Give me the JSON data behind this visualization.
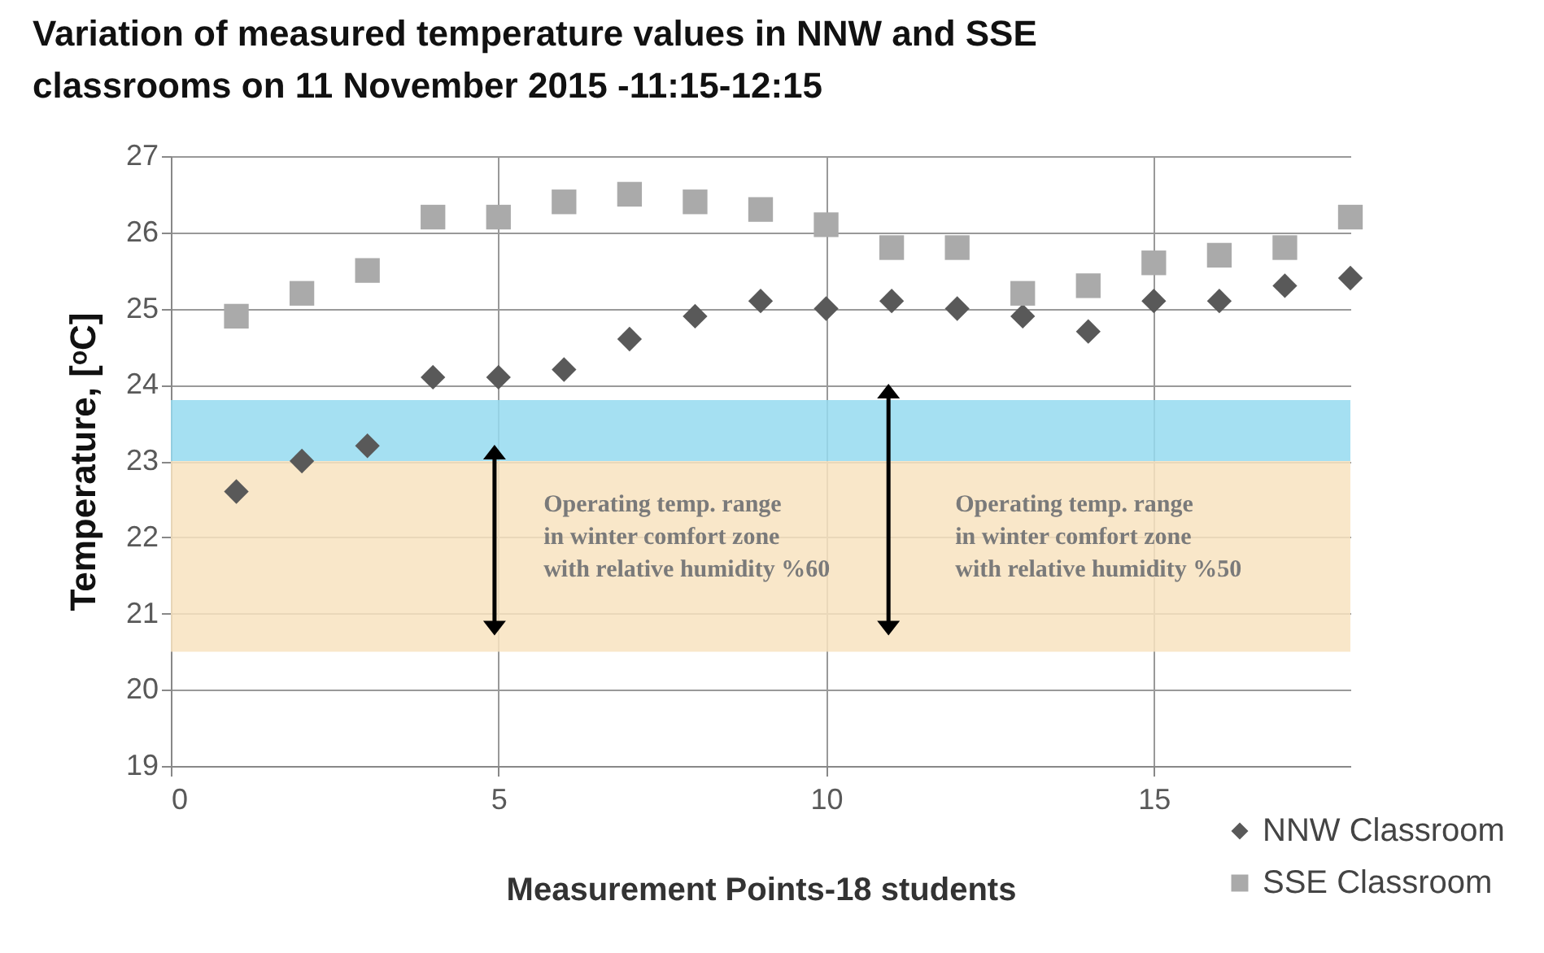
{
  "chart_data": {
    "type": "scatter",
    "title": "Variation of measured temperature values in NNW and SSE classrooms on 11 November 2015 -11:15-12:15",
    "xlabel": "Measurement Points-18 students",
    "ylabel": "Temperature, [ᵒC]",
    "x": [
      1,
      2,
      3,
      4,
      5,
      6,
      7,
      8,
      9,
      10,
      11,
      12,
      13,
      14,
      15,
      16,
      17,
      18
    ],
    "series": [
      {
        "name": "NNW Classroom",
        "color": "#595959",
        "marker": "diamond",
        "values": [
          22.6,
          23.0,
          23.2,
          24.1,
          24.1,
          24.2,
          24.6,
          24.9,
          25.1,
          25.0,
          25.1,
          25.0,
          24.9,
          24.7,
          25.1,
          25.1,
          25.3,
          25.4
        ]
      },
      {
        "name": "SSE  Classroom",
        "color": "#aaaaaa",
        "marker": "square",
        "values": [
          24.9,
          25.2,
          25.5,
          26.2,
          26.2,
          26.4,
          26.5,
          26.4,
          26.3,
          26.1,
          25.8,
          25.8,
          25.2,
          25.3,
          25.6,
          25.7,
          25.8,
          26.2
        ]
      }
    ],
    "bands": [
      {
        "axis": "y",
        "from": 20.5,
        "to": 23,
        "color": "#f8e3c0"
      },
      {
        "axis": "y",
        "from": 23,
        "to": 23.8,
        "color": "#95dbf0"
      }
    ],
    "annotations": [
      "Operating temp. range\nin winter comfort zone\nwith relative humidity %60",
      "Operating temp. range\nin winter comfort zone\nwith relative humidity %50"
    ],
    "xlim": [
      0,
      18
    ],
    "xticks": [
      0,
      5,
      10,
      15
    ],
    "ylim": [
      19,
      27
    ],
    "yticks": [
      19,
      20,
      21,
      22,
      23,
      24,
      25,
      26,
      27
    ],
    "grid": true,
    "legend": "bottom right"
  }
}
